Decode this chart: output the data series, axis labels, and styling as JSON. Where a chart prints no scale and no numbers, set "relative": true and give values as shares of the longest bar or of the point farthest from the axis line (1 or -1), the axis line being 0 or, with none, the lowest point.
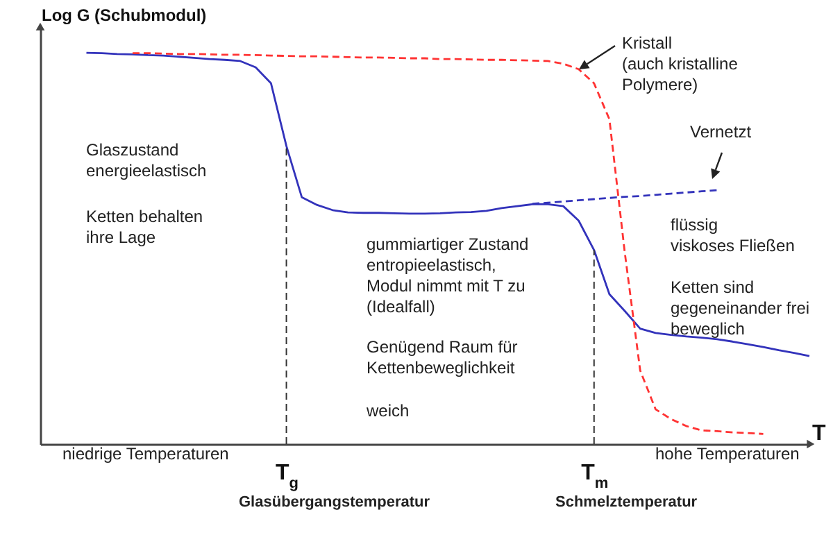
{
  "chart_data": {
    "type": "line",
    "relative": true,
    "xlabel": "T",
    "ylabel": "Log G (Schubmodul)",
    "categories": [
      null,
      null,
      null,
      null,
      null,
      null,
      null,
      null,
      null,
      null,
      null,
      null,
      null,
      null,
      null,
      null,
      "T$_{g}$",
      null,
      null,
      null,
      null,
      null,
      null,
      null,
      null,
      null,
      null,
      null,
      null,
      null,
      null,
      null,
      null,
      null,
      null,
      null,
      "T$_{m}$",
      null,
      null,
      null,
      null,
      null,
      null,
      null,
      null,
      null,
      null,
      null,
      null,
      null,
      null
    ],
    "grid": false,
    "series": [
      {
        "color": "#3333bb",
        "line_style": "solid",
        "values": [
          null,
          null,
          null,
          1.0,
          0.999,
          0.997,
          0.996,
          0.994,
          0.993,
          0.99,
          0.987,
          0.984,
          0.982,
          0.979,
          0.963,
          0.922,
          0.762,
          0.631,
          0.611,
          0.598,
          0.592,
          0.591,
          0.591,
          0.59,
          0.589,
          0.589,
          0.59,
          0.592,
          0.593,
          0.596,
          0.603,
          0.608,
          0.613,
          0.613,
          0.608,
          0.571,
          0.496,
          0.383,
          0.34,
          0.295,
          0.284,
          0.279,
          0.275,
          0.272,
          0.268,
          0.262,
          0.255,
          0.248,
          0.24,
          0.233,
          0.225
        ]
      },
      {
        "color": "#3333bb",
        "line_style": "dashed",
        "values": [
          null,
          null,
          null,
          null,
          null,
          null,
          null,
          null,
          null,
          null,
          null,
          null,
          null,
          null,
          null,
          null,
          null,
          null,
          null,
          null,
          null,
          null,
          null,
          null,
          null,
          null,
          null,
          null,
          null,
          null,
          null,
          null,
          0.614,
          0.617,
          0.62,
          0.623,
          0.626,
          0.629,
          0.632,
          0.634,
          0.637,
          0.64,
          0.643,
          0.646,
          0.649,
          null,
          null,
          null,
          null,
          null,
          null
        ]
      },
      {
        "color": "#ff3333",
        "line_style": "dashed",
        "values": [
          null,
          null,
          null,
          null,
          null,
          null,
          0.999,
          0.999,
          0.998,
          0.997,
          0.997,
          0.996,
          0.995,
          0.995,
          0.994,
          0.993,
          0.992,
          0.991,
          0.991,
          0.99,
          0.989,
          0.988,
          0.988,
          0.987,
          0.986,
          0.986,
          0.984,
          0.984,
          0.983,
          0.982,
          0.982,
          0.981,
          0.98,
          0.979,
          0.972,
          0.958,
          0.922,
          0.83,
          0.489,
          0.188,
          0.089,
          0.064,
          0.046,
          0.035,
          0.033,
          0.03,
          0.028,
          0.026,
          null,
          null,
          null
        ]
      }
    ],
    "ref_lines": [
      {
        "axis": "x",
        "value": "T$_{g}$",
        "color": "#333333",
        "line_style": "dashed"
      },
      {
        "axis": "x",
        "value": "T$_{m}$",
        "color": "#333333",
        "line_style": "dashed"
      }
    ],
    "annotations": [
      "Glaszustand\nenergieelastisch",
      "Ketten behalten\nihre Lage",
      "gummiartiger Zustand\nentropieelastisch,\nModul nimmt mit T zu\n(Idealfall)",
      "Genügend Raum für\nKettenbeweglichkeit",
      "weich",
      "flüssig\nviskoses Fließen",
      "Ketten sind\ngegeneinander frei\nbeweglich",
      "niedrige Temperaturen",
      "hohe Temperaturen",
      "Glasübergangstemperatur",
      "Schmelztemperatur",
      "Kristall\n(auch kristalline\nPolymere)",
      "Vernetzt"
    ]
  }
}
